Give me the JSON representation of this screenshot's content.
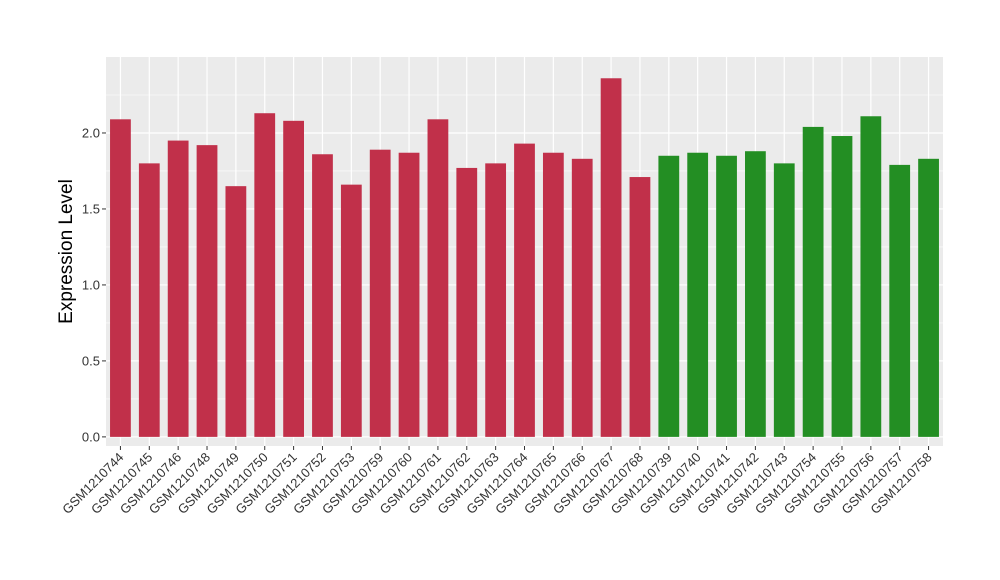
{
  "chart_data": {
    "type": "bar",
    "title": "",
    "xlabel": "",
    "ylabel": "Expression Level",
    "ylim": [
      -0.06,
      2.5
    ],
    "yticks": [
      0.0,
      0.5,
      1.0,
      1.5,
      2.0
    ],
    "ytick_labels": [
      "0.0",
      "0.5",
      "1.0",
      "1.5",
      "2.0"
    ],
    "grid": true,
    "legend": "none",
    "categories": [
      "GSM1210744",
      "GSM1210745",
      "GSM1210746",
      "GSM1210748",
      "GSM1210749",
      "GSM1210750",
      "GSM1210751",
      "GSM1210752",
      "GSM1210753",
      "GSM1210759",
      "GSM1210760",
      "GSM1210761",
      "GSM1210762",
      "GSM1210763",
      "GSM1210764",
      "GSM1210765",
      "GSM1210766",
      "GSM1210767",
      "GSM1210768",
      "GSM1210739",
      "GSM1210740",
      "GSM1210741",
      "GSM1210742",
      "GSM1210743",
      "GSM1210754",
      "GSM1210755",
      "GSM1210756",
      "GSM1210757",
      "GSM1210758"
    ],
    "values": [
      2.09,
      1.8,
      1.95,
      1.92,
      1.65,
      2.13,
      2.08,
      1.86,
      1.66,
      1.89,
      1.87,
      2.09,
      1.77,
      1.8,
      1.93,
      1.87,
      1.83,
      2.36,
      1.71,
      1.85,
      1.87,
      1.85,
      1.88,
      1.8,
      2.04,
      1.98,
      2.11,
      1.79,
      1.83
    ],
    "groups": [
      0,
      0,
      0,
      0,
      0,
      0,
      0,
      0,
      0,
      0,
      0,
      0,
      0,
      0,
      0,
      0,
      0,
      0,
      0,
      1,
      1,
      1,
      1,
      1,
      1,
      1,
      1,
      1,
      1
    ],
    "group_colors": [
      "#c1304a",
      "#238e23"
    ],
    "panel_background": "#ebebeb",
    "grid_color": "#ffffff"
  }
}
